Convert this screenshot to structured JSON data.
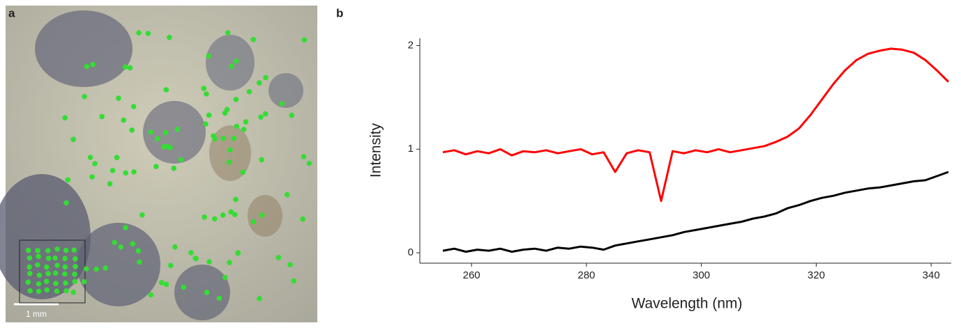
{
  "panel_labels": [
    "a",
    "b"
  ],
  "scale_bar": "1 mm",
  "chart_data": {
    "type": "line",
    "x_label": "Wavelength (nm)",
    "y_label": "Intensity",
    "x": [
      255,
      257,
      259,
      261,
      263,
      265,
      267,
      269,
      271,
      273,
      275,
      277,
      279,
      281,
      283,
      285,
      287,
      289,
      291,
      293,
      295,
      297,
      299,
      301,
      303,
      305,
      307,
      309,
      311,
      313,
      315,
      317,
      319,
      321,
      323,
      325,
      327,
      329,
      331,
      333,
      335,
      337,
      339,
      341,
      343
    ],
    "series": [
      {
        "color": "#ff0000",
        "values": [
          0.97,
          0.99,
          0.95,
          0.98,
          0.96,
          1.0,
          0.94,
          0.98,
          0.97,
          0.99,
          0.96,
          0.98,
          1.0,
          0.95,
          0.97,
          0.78,
          0.96,
          0.99,
          0.97,
          0.5,
          0.98,
          0.96,
          0.99,
          0.97,
          1.0,
          0.97,
          0.99,
          1.01,
          1.03,
          1.07,
          1.12,
          1.2,
          1.33,
          1.48,
          1.63,
          1.76,
          1.86,
          1.92,
          1.95,
          1.97,
          1.96,
          1.93,
          1.86,
          1.76,
          1.65
        ]
      },
      {
        "color": "#000000",
        "values": [
          0.02,
          0.04,
          0.01,
          0.03,
          0.02,
          0.04,
          0.01,
          0.03,
          0.04,
          0.02,
          0.05,
          0.04,
          0.06,
          0.05,
          0.03,
          0.07,
          0.09,
          0.11,
          0.13,
          0.15,
          0.17,
          0.2,
          0.22,
          0.24,
          0.26,
          0.28,
          0.3,
          0.33,
          0.35,
          0.38,
          0.43,
          0.46,
          0.5,
          0.53,
          0.55,
          0.58,
          0.6,
          0.62,
          0.63,
          0.65,
          0.67,
          0.69,
          0.7,
          0.74,
          0.78
        ]
      }
    ],
    "xlim": [
      251,
      343.5
    ],
    "ylim": [
      -0.1,
      2.07
    ],
    "xticks": [
      260,
      280,
      300,
      320,
      340
    ],
    "yticks": [
      0,
      1,
      2
    ]
  }
}
